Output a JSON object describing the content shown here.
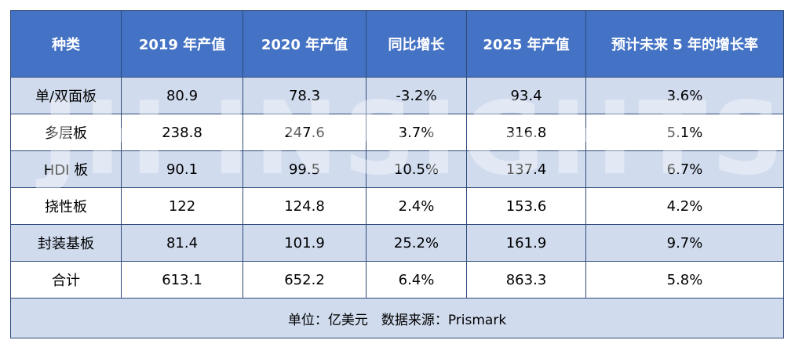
{
  "headers": [
    "种类",
    "2019 年产值",
    "2020 年产值",
    "同比增长",
    "2025 年产值",
    "预计未来 5 年的增长率"
  ],
  "rows": [
    [
      "单/双面板",
      "80.9",
      "78.3",
      "-3.2%",
      "93.4",
      "3.6%"
    ],
    [
      "多层板",
      "238.8",
      "247.6",
      "3.7%",
      "316.8",
      "5.1%"
    ],
    [
      "HDI 板",
      "90.1",
      "99.5",
      "10.5%",
      "137.4",
      "6.7%"
    ],
    [
      "挠性板",
      "122",
      "124.8",
      "2.4%",
      "153.6",
      "4.2%"
    ],
    [
      "封装基板",
      "81.4",
      "101.9",
      "25.2%",
      "161.9",
      "9.7%"
    ],
    [
      "合计",
      "613.1",
      "652.2",
      "6.4%",
      "863.3",
      "5.8%"
    ]
  ],
  "footer": "单位：亿美元　数据来源：Prismark",
  "watermark": "JH INSIGHTS",
  "colors": {
    "header_bg": "#4472c4",
    "band_bg": "#d0dbee",
    "border": "#2e4a7a"
  }
}
